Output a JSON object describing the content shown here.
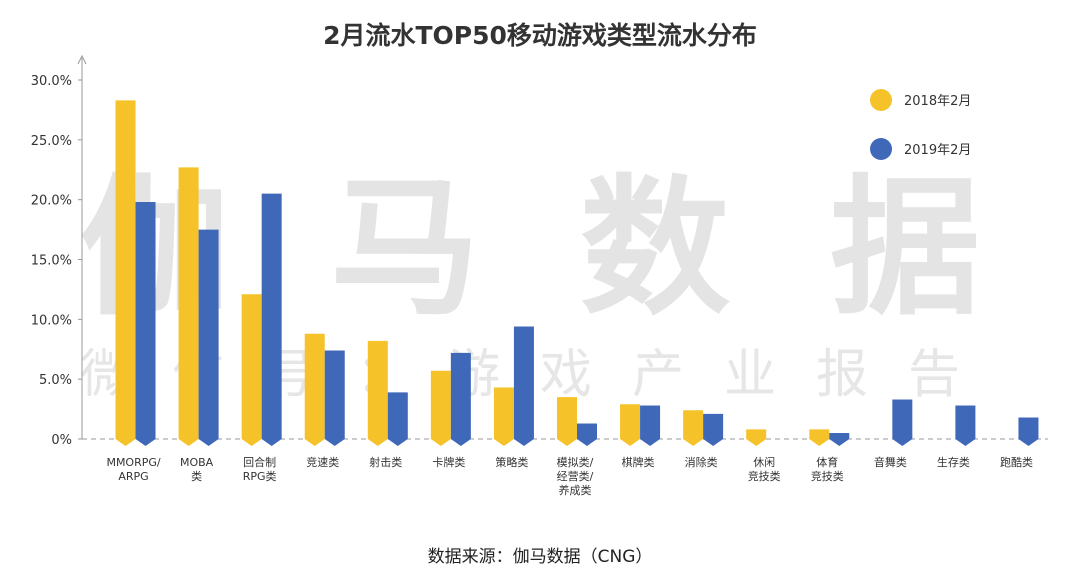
{
  "watermark": {
    "main": "伽马数据",
    "sub": "微信号：游戏产业报告"
  },
  "chart_data": {
    "type": "bar",
    "title": "2月流水TOP50移动游戏类型流水分布",
    "source": "数据来源：伽马数据（CNG）",
    "ylim": [
      0,
      30
    ],
    "yticks": [
      "0%",
      "5.0%",
      "10.0%",
      "15.0%",
      "20.0%",
      "25.0%",
      "30.0%"
    ],
    "categories": [
      [
        "MMORPG/",
        "ARPG"
      ],
      [
        "MOBA",
        "类"
      ],
      [
        "回合制",
        "RPG类"
      ],
      [
        "竞速类"
      ],
      [
        "射击类"
      ],
      [
        "卡牌类"
      ],
      [
        "策略类"
      ],
      [
        "模拟类/",
        "经营类/",
        "养成类"
      ],
      [
        "棋牌类"
      ],
      [
        "消除类"
      ],
      [
        "休闲",
        "竞技类"
      ],
      [
        "体育",
        "竞技类"
      ],
      [
        "音舞类"
      ],
      [
        "生存类"
      ],
      [
        "跑酷类"
      ]
    ],
    "series": [
      {
        "name": "2018年2月",
        "color": "#f5c22a",
        "values": [
          28.3,
          22.7,
          12.1,
          8.8,
          8.2,
          5.7,
          4.3,
          3.5,
          2.9,
          2.4,
          0.8,
          0.8,
          0,
          0,
          0
        ]
      },
      {
        "name": "2019年2月",
        "color": "#4068b8",
        "values": [
          19.8,
          17.5,
          20.5,
          7.4,
          3.9,
          7.2,
          9.4,
          1.3,
          2.8,
          2.1,
          0,
          0.5,
          3.3,
          2.8,
          1.8
        ]
      }
    ],
    "legend_position": "top-right",
    "grid": false
  }
}
